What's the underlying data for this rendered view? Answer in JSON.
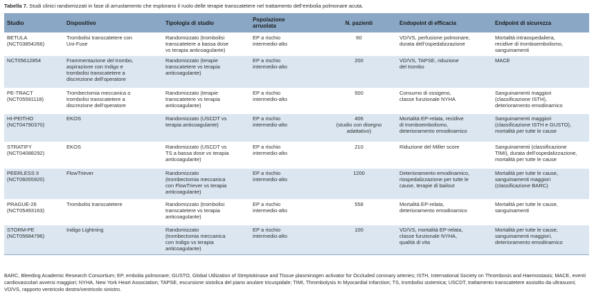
{
  "caption": {
    "label": "Tabella 7.",
    "text": " Studi clinici randomizzati in fase di arruolamento che esplorano il ruolo delle terapie transcatetere nel trattamento dell’embolia polmonare acuta."
  },
  "table": {
    "headers": [
      "Studio",
      "Dispositivo",
      "Tipologia di studio",
      "Popolazione\narruolata",
      "N. pazienti",
      "Endopoint di efficacia",
      "Endpoint di sicurezza"
    ],
    "rows": [
      [
        "BETULA\n(NCT03854266)",
        "Trombolisi transcatetere con\nUni-Fuse",
        "Randomizzato (trombolisi\ntranscatetere a bassa dose\nvs terapia anticoagulante)",
        "EP a rischio\nintermedio-alto",
        "60",
        "VD/VS, perfusione polmonare,\ndurata dell’ospedalizzazione",
        "Mortalità intraospedaliera,\nrecidive di tromboembolismo,\nsanguinamenti"
      ],
      [
        "NCT05612854",
        "Frammentazione del trombo,\naspirazione con Indigo e\ntrombolisi transcatetere a\ndiscrezione dell’operatore",
        "Randomizzato (terapie\ntranscatetere vs terapia\nanticoagulante)",
        "EP a rischio\nintermedio-alto",
        "200",
        "VD/VS, TAPSE, riduzione\ndel trombo",
        "MACE"
      ],
      [
        "PE-TRACT\n(NCT05591118)",
        "Trombectomia meccanica o\ntrombolisi transcatetere a\ndiscrezione dell’operatore",
        "Randomizzato (terapie\ntranscatetere vs terapia\nanticoagulante)",
        "EP a rischio\nintermedio-alto",
        "500",
        "Consumo di ossigeno,\nclasse funzionale NYHA",
        "Sanguinamenti maggiori\n(classificazione ISTH),\ndeterioramento emodinamico"
      ],
      [
        "HI-PEITHO\n(NCT04790370)",
        "EKOS",
        "Randomizzato (USCDT vs\nterapia anticoagulante)",
        "EP a rischio\nintermedio-alto",
        "406\n(studio con disegno\nadattativo)",
        "Mortalità EP-relata, recidive\ndi tromboembolismo,\ndeterioramento emodinamico",
        "Sanguinamenti maggiori\n(classificazione ISTH e GUSTO),\nmortalità per tutte le cause"
      ],
      [
        "STRATIFY\n(NCT04088292)",
        "EKOS",
        "Randomizzato (USCDT vs\nTS a bassa dose vs terapia\nanticoagulante)",
        "EP a rischio\nintermedio-alto",
        "210",
        "Riduzione del Miller score",
        "Sanguinamenti (classificazione\nTIMI), durata dell’ospedalizzazione,\nmortalità per tutte le cause"
      ],
      [
        "PEERLESS II\n(NCT06055920)",
        "FlowTriever",
        "Randomizzato\n(trombectomia meccanica\ncon FlowTriever vs terapia\nanticoagulante)",
        "EP a rischio\nintermedio-alto",
        "1200",
        "Deterioramento emodinamico,\nriospedalizzazione per tutte le\ncause, terapie di bailout",
        "Mortalità per tutte le cause,\nsanguinamenti maggiori\n(classificazione BARC)"
      ],
      [
        "PRAGUE-26\n(NCT05493163)",
        "Trombolisi transcatetere",
        "Randomizzato (trombolisi\ntranscatetere vs terapia\nanticoagulante)",
        "EP a rischio\nintermedio-alto",
        "558",
        "Mortalità EP-relata,\ndeterioramento emodinamico",
        "Mortalità per tutte le cause,\nsanguinamenti"
      ],
      [
        "STORM-PE\n(NCT05684796)",
        "Indigo Lightning",
        "Randomizzato\n(trombectomia meccanica\ncon Indigo vs terapia\nanticoagulante)",
        "EP a rischio\nintermedio-alto",
        "100",
        "VD/VS, mortalità EP-relata,\nclasse funzionale NYHA,\nqualità di vita",
        "Mortalità per tutte le cause,\nsanguinamenti maggiori,\ndeterioramento emodinamico"
      ]
    ]
  },
  "footnote": "BARC, Bleeding Academic Research Consortium; EP, embolia polmonare; GUSTO, Global Utilization of Streptokinase and Tissue plasminogen activator for Occluded coronary arteries; ISTH, International Society on Thrombosis and Haemostasis; MACE, eventi cardiovascolari avversi maggiori; NYHA, New York Heart Association; TAPSE, escursione sistolica del piano anulare tricuspidale; TIMI, Thrombolysis In Myocardial Infarction; TS, trombolisi sistemica; USCDT, trattamento transcatetere assistito da ultrasuoni; VD/VS, rapporto ventricolo destro/ventricolo sinistro."
}
